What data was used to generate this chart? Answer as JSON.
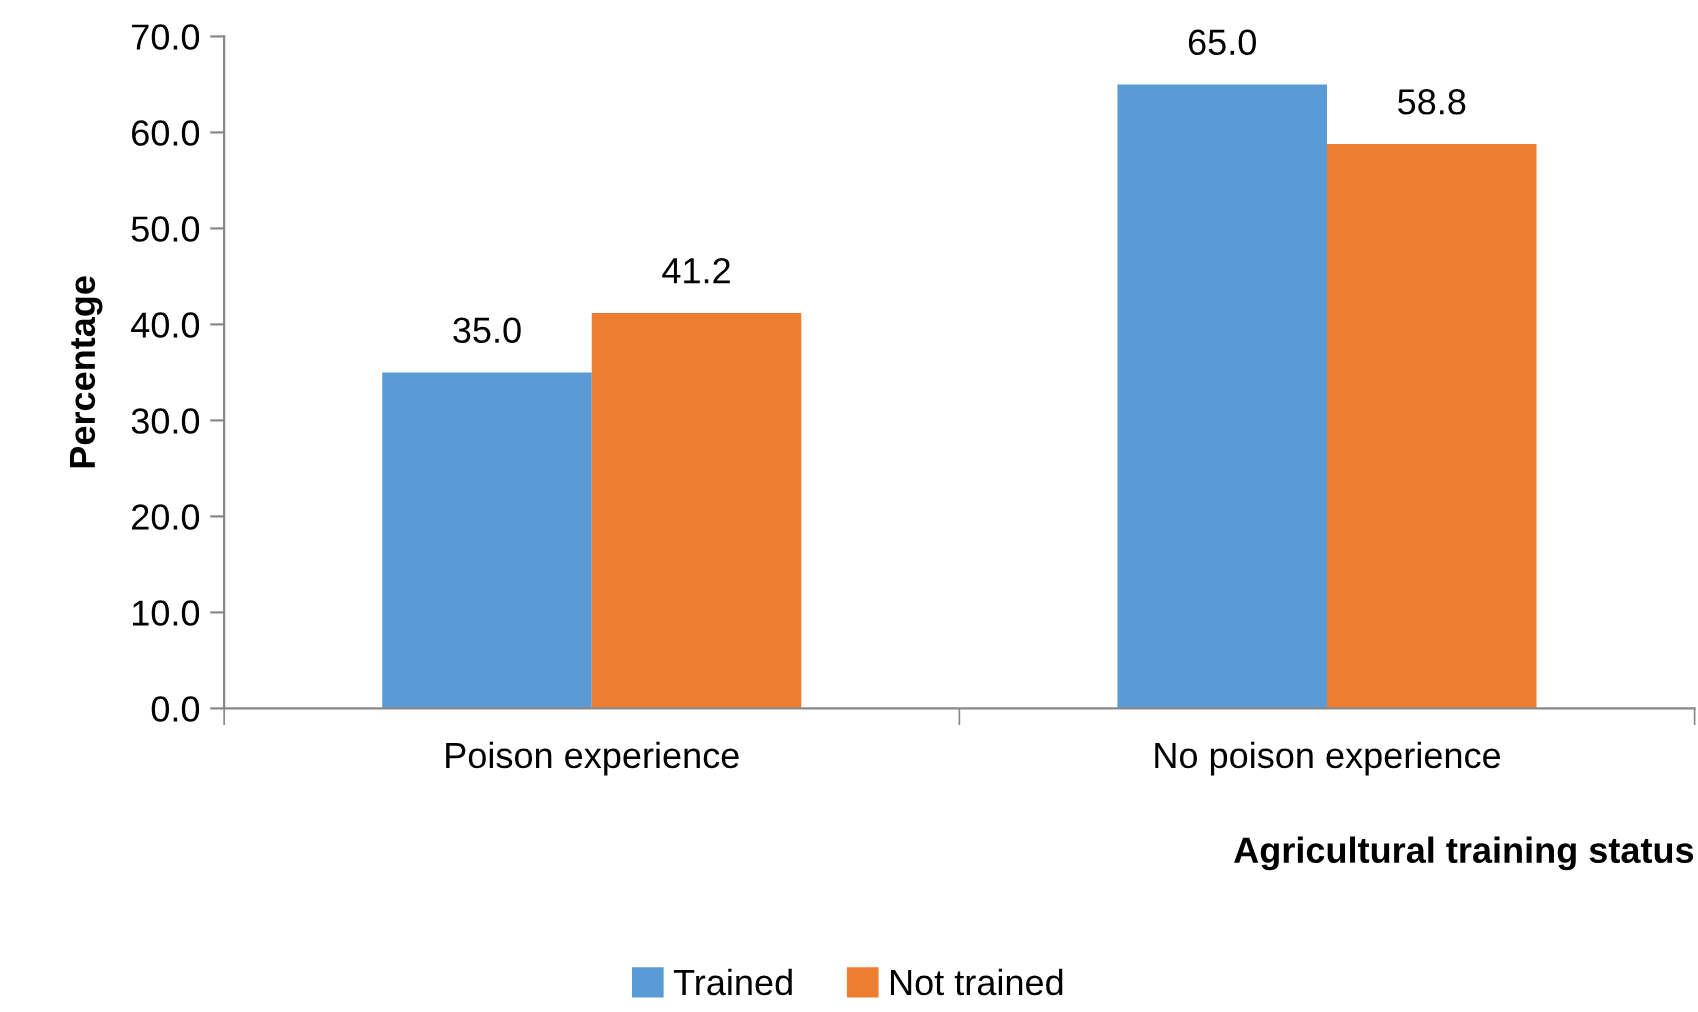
{
  "chart_data": {
    "type": "bar",
    "xlabel": "Agricultural training status",
    "ylabel": "Percentage",
    "categories": [
      "Poison experience",
      "No poison experience"
    ],
    "series": [
      {
        "name": "Trained",
        "color": "#5b9bd5",
        "values": [
          35.0,
          65.0
        ],
        "value_labels": [
          "35.0",
          "65.0"
        ]
      },
      {
        "name": "Not trained",
        "color": "#ed7d31",
        "values": [
          41.2,
          58.8
        ],
        "value_labels": [
          "41.2",
          "58.8"
        ]
      }
    ],
    "ylim": [
      0,
      70
    ],
    "yticks": [
      {
        "value": 0,
        "label": "0.0"
      },
      {
        "value": 10,
        "label": "10.0"
      },
      {
        "value": 20,
        "label": "20.0"
      },
      {
        "value": 30,
        "label": "30.0"
      },
      {
        "value": 40,
        "label": "40.0"
      },
      {
        "value": 50,
        "label": "50.0"
      },
      {
        "value": 60,
        "label": "60.0"
      },
      {
        "value": 70,
        "label": "70.0"
      }
    ],
    "grid": false,
    "legend": "bottom"
  }
}
